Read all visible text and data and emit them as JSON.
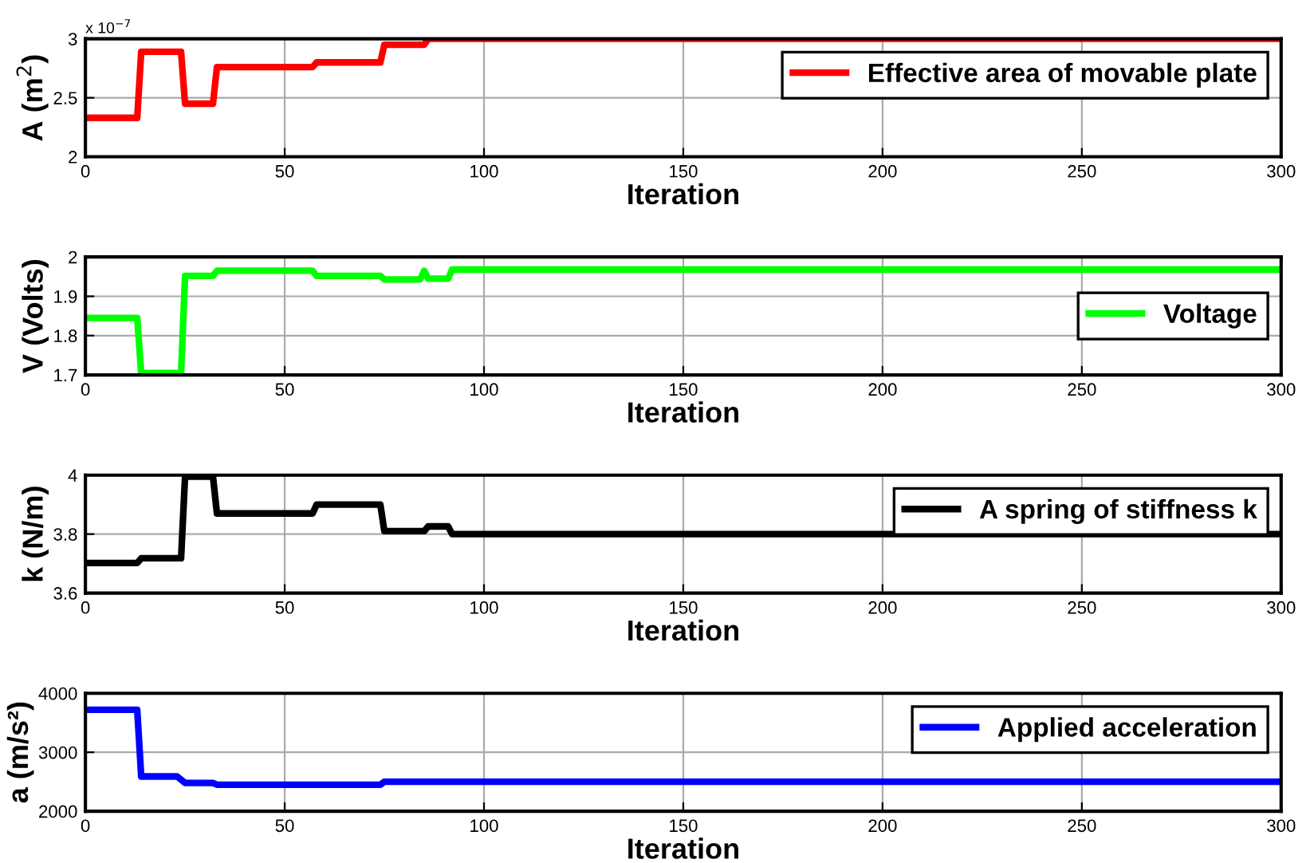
{
  "chart_data": [
    {
      "type": "line",
      "xlabel": "Iteration",
      "ylabel": "A (m$^{2}$)",
      "annotations": [
        "x 10$^{−7}$"
      ],
      "xlim": [
        0,
        300
      ],
      "xticks": [
        0,
        50,
        100,
        150,
        200,
        250,
        300
      ],
      "ylim": [
        2,
        3
      ],
      "yticks": [
        2,
        2.5,
        3
      ],
      "grid": true,
      "legend": "top right",
      "series": [
        {
          "name": "Effective area of movable plate",
          "color": "#ff0000",
          "x": [
            0,
            13,
            14,
            24,
            25,
            32,
            33,
            57,
            58,
            74,
            75,
            85,
            86,
            300
          ],
          "values": [
            2.33,
            2.33,
            2.89,
            2.89,
            2.45,
            2.45,
            2.76,
            2.76,
            2.8,
            2.8,
            2.95,
            2.95,
            3.0,
            3.0
          ]
        }
      ]
    },
    {
      "type": "line",
      "xlabel": "Iteration",
      "ylabel": "V (Volts)",
      "xlim": [
        0,
        300
      ],
      "xticks": [
        0,
        50,
        100,
        150,
        200,
        250,
        300
      ],
      "ylim": [
        1.7,
        2
      ],
      "yticks": [
        1.7,
        1.8,
        1.9,
        2
      ],
      "grid": true,
      "legend": "right",
      "series": [
        {
          "name": "Voltage",
          "color": "#00ff00",
          "x": [
            0,
            13,
            14,
            24,
            25,
            32,
            33,
            57,
            58,
            74,
            75,
            84,
            85,
            86,
            91,
            92,
            300
          ],
          "values": [
            1.845,
            1.845,
            1.705,
            1.705,
            1.952,
            1.952,
            1.965,
            1.965,
            1.952,
            1.952,
            1.943,
            1.943,
            1.965,
            1.945,
            1.945,
            1.968,
            1.968
          ]
        }
      ]
    },
    {
      "type": "line",
      "xlabel": "Iteration",
      "ylabel": "k (N/m)",
      "xlim": [
        0,
        300
      ],
      "xticks": [
        0,
        50,
        100,
        150,
        200,
        250,
        300
      ],
      "ylim": [
        3.6,
        4
      ],
      "yticks": [
        3.6,
        3.8,
        4
      ],
      "grid": true,
      "legend": "top right",
      "series": [
        {
          "name": "A spring of stiffness k",
          "color": "#000000",
          "x": [
            0,
            13,
            14,
            24,
            25,
            32,
            33,
            57,
            58,
            74,
            75,
            85,
            86,
            91,
            92,
            300
          ],
          "values": [
            3.702,
            3.702,
            3.718,
            3.718,
            3.995,
            3.995,
            3.87,
            3.87,
            3.9,
            3.9,
            3.81,
            3.81,
            3.826,
            3.826,
            3.8,
            3.8
          ]
        }
      ]
    },
    {
      "type": "line",
      "xlabel": "Iteration",
      "ylabel": "a (m/s²)",
      "xlim": [
        0,
        300
      ],
      "xticks": [
        0,
        50,
        100,
        150,
        200,
        250,
        300
      ],
      "ylim": [
        2000,
        4000
      ],
      "yticks": [
        2000,
        3000,
        4000
      ],
      "grid": true,
      "legend": "top right",
      "series": [
        {
          "name": "Applied acceleration",
          "color": "#0000ff",
          "x": [
            0,
            13,
            14,
            23,
            25,
            32,
            33,
            74,
            75,
            300
          ],
          "values": [
            3720,
            3720,
            2590,
            2590,
            2480,
            2480,
            2450,
            2450,
            2500,
            2500
          ]
        }
      ]
    }
  ]
}
